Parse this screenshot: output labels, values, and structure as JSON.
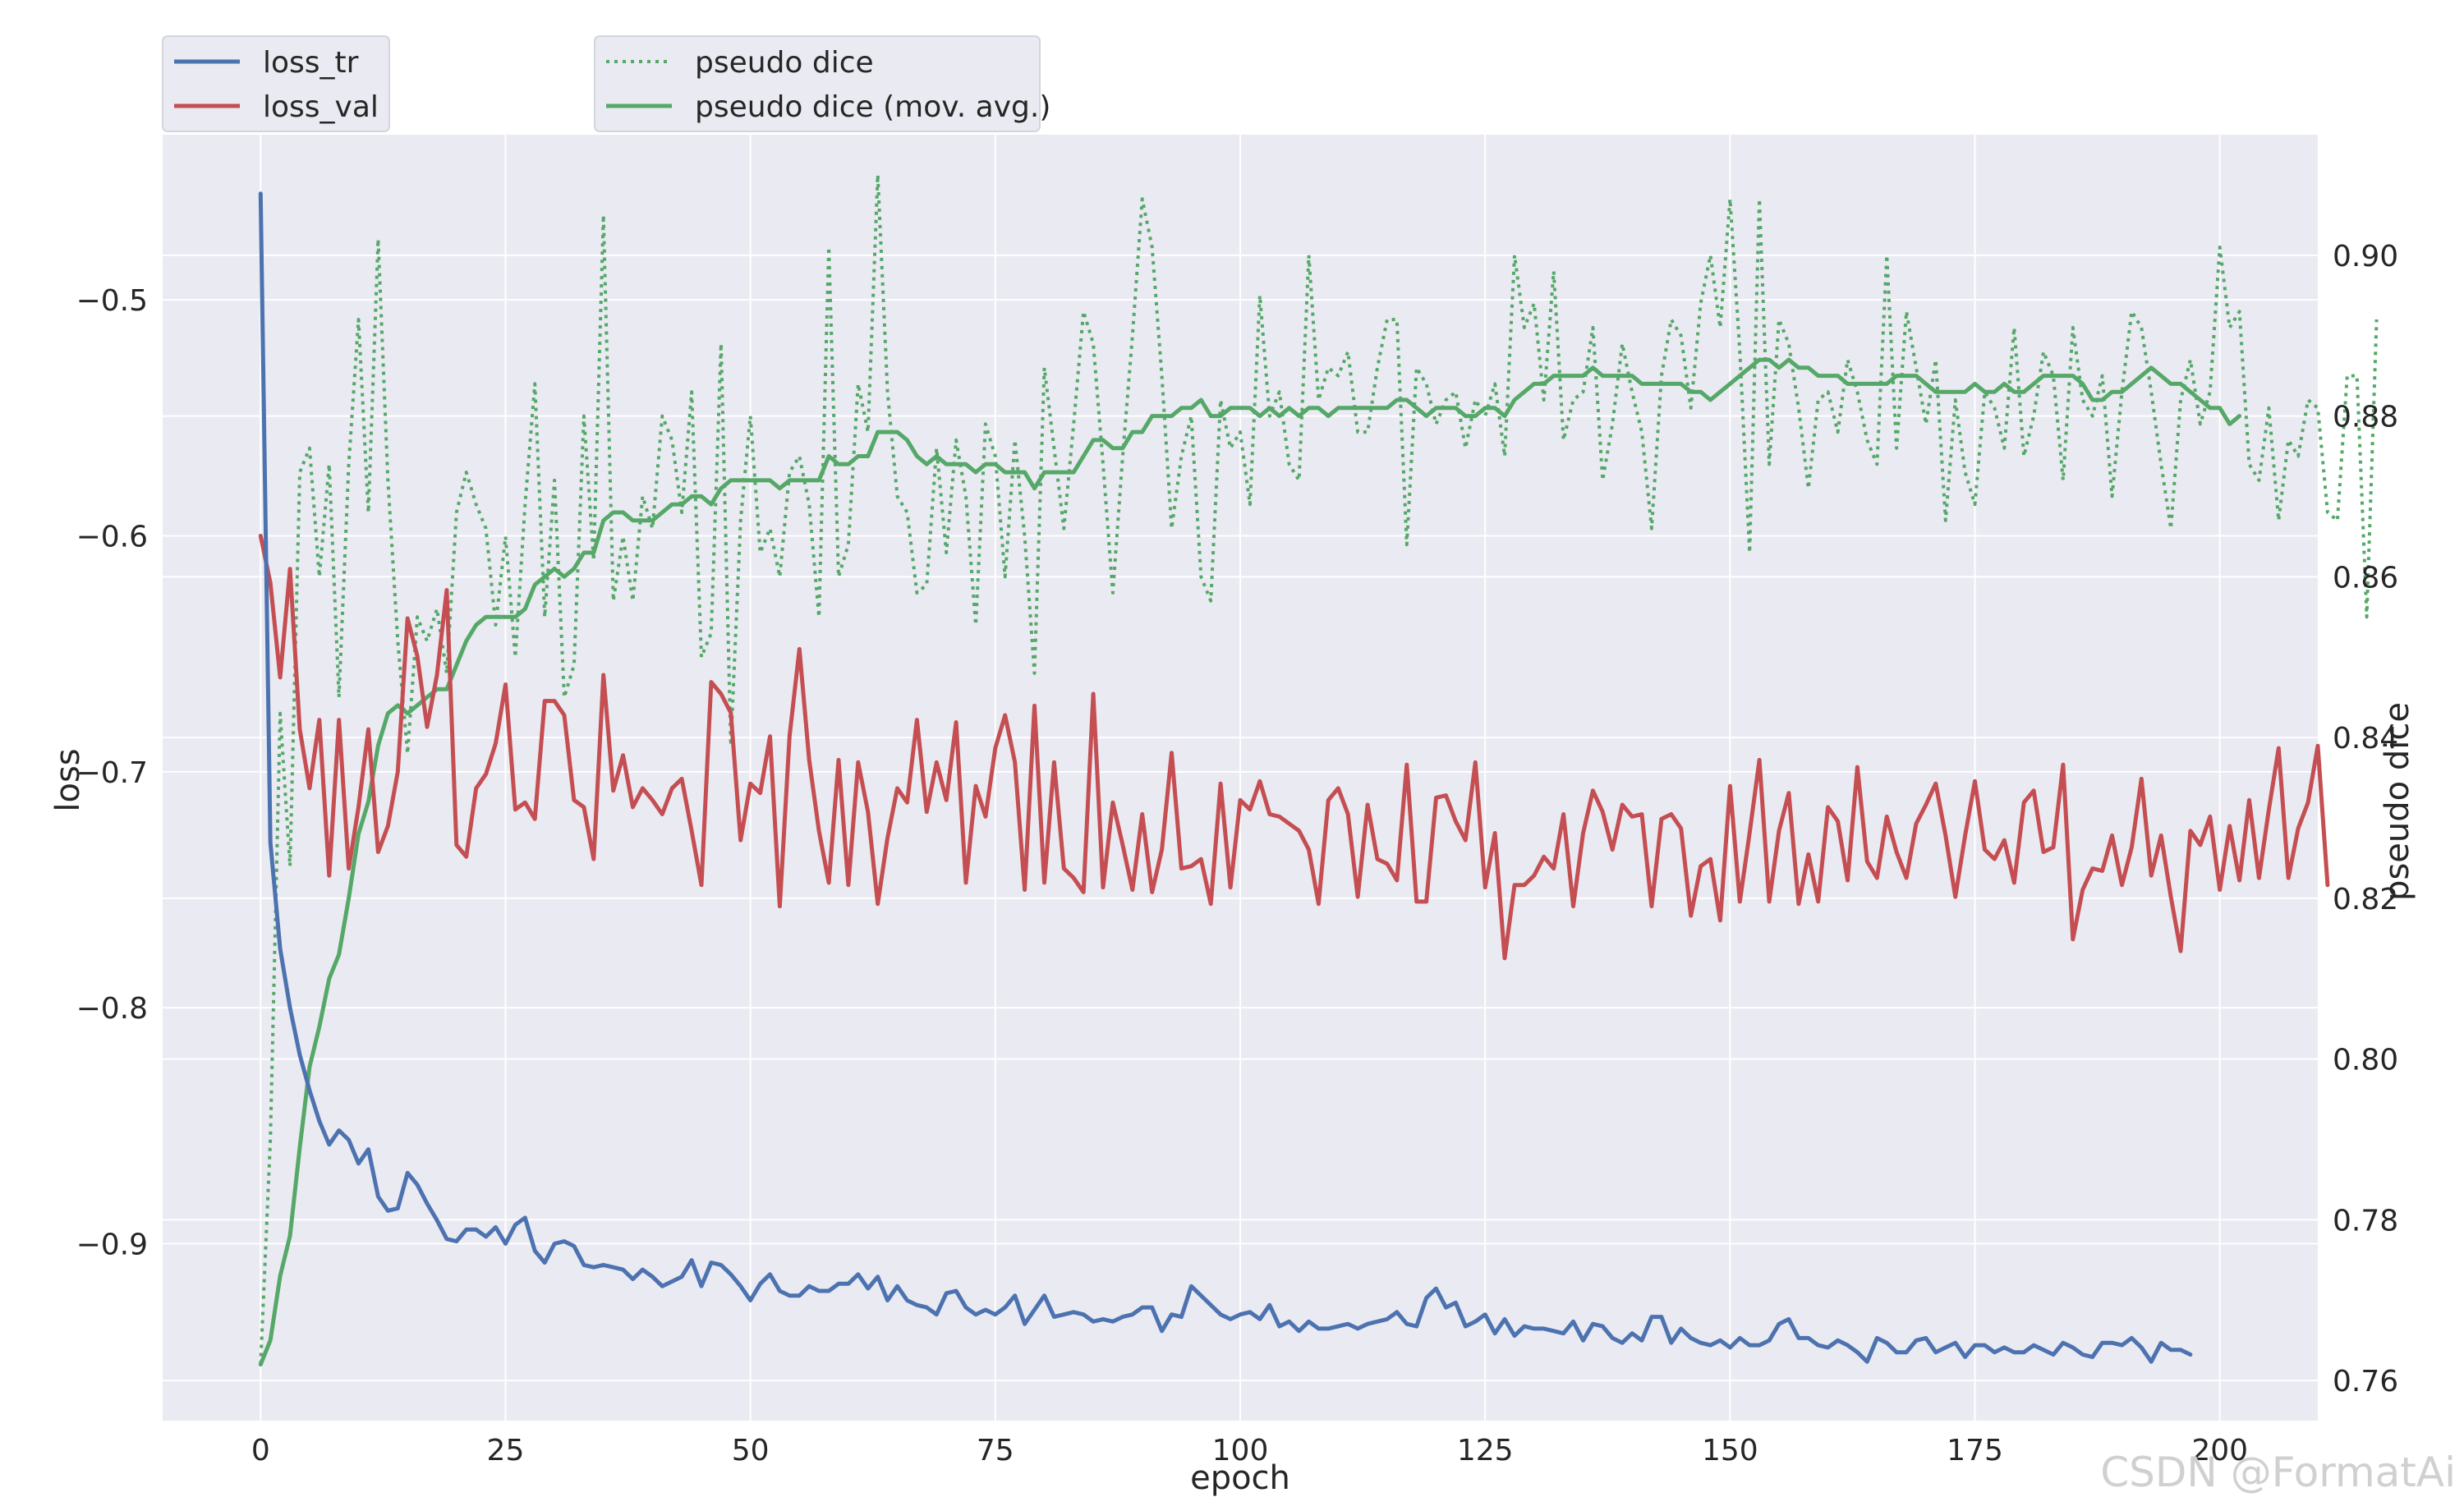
{
  "chart_data": {
    "type": "line",
    "xlabel": "epoch",
    "ylabel_left": "loss",
    "ylabel_right": "pseudo dice",
    "xlim": [
      -10,
      210
    ],
    "ylim_left": [
      -0.975,
      -0.43
    ],
    "ylim_right": [
      0.755,
      0.915
    ],
    "x_ticks": [
      0,
      25,
      50,
      75,
      100,
      125,
      150,
      175,
      200
    ],
    "y_ticks_left": [
      -0.9,
      -0.8,
      -0.7,
      -0.6,
      -0.5
    ],
    "y_ticks_right": [
      0.76,
      0.78,
      0.8,
      0.82,
      0.84,
      0.86,
      0.88,
      0.9
    ],
    "grid": true,
    "legend_left": {
      "placement": "top-left",
      "entries": [
        "loss_tr",
        "loss_val"
      ]
    },
    "legend_right": {
      "placement": "top-center-left",
      "entries": [
        "pseudo dice",
        "pseudo dice (mov. avg.)"
      ]
    },
    "colors": {
      "loss_tr": "#4c72b0",
      "loss_val": "#c44e52",
      "pseudo_dice": "#55a868",
      "pseudo_dice_mov_avg": "#55a868",
      "background": "#eaeaf2",
      "grid": "#ffffff"
    },
    "epochs": 200,
    "series": [
      {
        "name": "loss_tr",
        "axis": "left",
        "style": "solid",
        "values": [
          -0.455,
          -0.73,
          -0.775,
          -0.8,
          -0.82,
          -0.835,
          -0.848,
          -0.858,
          -0.852,
          -0.856,
          -0.866,
          -0.86,
          -0.88,
          -0.886,
          -0.885,
          -0.87,
          -0.875,
          -0.883,
          -0.89,
          -0.898,
          -0.899,
          -0.894,
          -0.894,
          -0.897,
          -0.893,
          -0.9,
          -0.892,
          -0.889,
          -0.903,
          -0.908,
          -0.9,
          -0.899,
          -0.901,
          -0.909,
          -0.91,
          -0.909,
          -0.91,
          -0.911,
          -0.915,
          -0.911,
          -0.914,
          -0.918,
          -0.916,
          -0.914,
          -0.907,
          -0.918,
          -0.908,
          -0.909,
          -0.913,
          -0.918,
          -0.924,
          -0.917,
          -0.913,
          -0.92,
          -0.922,
          -0.922,
          -0.918,
          -0.92,
          -0.92,
          -0.917,
          -0.917,
          -0.913,
          -0.919,
          -0.914,
          -0.924,
          -0.918,
          -0.924,
          -0.926,
          -0.927,
          -0.93,
          -0.921,
          -0.92,
          -0.927,
          -0.93,
          -0.928,
          -0.93,
          -0.927,
          -0.922,
          -0.934,
          -0.928,
          -0.922,
          -0.931,
          -0.93,
          -0.929,
          -0.93,
          -0.933,
          -0.932,
          -0.933,
          -0.931,
          -0.93,
          -0.927,
          -0.927,
          -0.937,
          -0.93,
          -0.931,
          -0.918,
          -0.922,
          -0.926,
          -0.93,
          -0.932,
          -0.93,
          -0.929,
          -0.932,
          -0.926,
          -0.935,
          -0.933,
          -0.937,
          -0.933,
          -0.936,
          -0.936,
          -0.935,
          -0.934,
          -0.936,
          -0.934,
          -0.933,
          -0.932,
          -0.929,
          -0.934,
          -0.935,
          -0.923,
          -0.919,
          -0.927,
          -0.925,
          -0.935,
          -0.933,
          -0.93,
          -0.938,
          -0.932,
          -0.939,
          -0.935,
          -0.936,
          -0.936,
          -0.937,
          -0.938,
          -0.933,
          -0.941,
          -0.934,
          -0.935,
          -0.94,
          -0.942,
          -0.938,
          -0.941,
          -0.931,
          -0.931,
          -0.942,
          -0.936,
          -0.94,
          -0.942,
          -0.943,
          -0.941,
          -0.944,
          -0.94,
          -0.943,
          -0.943,
          -0.941,
          -0.934,
          -0.932,
          -0.94,
          -0.94,
          -0.943,
          -0.944,
          -0.941,
          -0.943,
          -0.946,
          -0.95,
          -0.94,
          -0.942,
          -0.946,
          -0.946,
          -0.941,
          -0.94,
          -0.946,
          -0.944,
          -0.942,
          -0.948,
          -0.943,
          -0.943,
          -0.946,
          -0.944,
          -0.946,
          -0.946,
          -0.943,
          -0.945,
          -0.947,
          -0.942,
          -0.944,
          -0.947,
          -0.948,
          -0.942,
          -0.942,
          -0.943,
          -0.94,
          -0.944,
          -0.95,
          -0.942,
          -0.945,
          -0.945,
          -0.947
        ]
      },
      {
        "name": "loss_val",
        "axis": "left",
        "style": "solid",
        "values": [
          -0.6,
          -0.62,
          -0.66,
          -0.614,
          -0.682,
          -0.707,
          -0.678,
          -0.744,
          -0.678,
          -0.741,
          -0.715,
          -0.682,
          -0.734,
          -0.723,
          -0.7,
          -0.635,
          -0.651,
          -0.681,
          -0.659,
          -0.623,
          -0.731,
          -0.736,
          -0.707,
          -0.701,
          -0.688,
          -0.663,
          -0.716,
          -0.713,
          -0.72,
          -0.67,
          -0.67,
          -0.676,
          -0.712,
          -0.715,
          -0.737,
          -0.659,
          -0.708,
          -0.693,
          -0.715,
          -0.707,
          -0.712,
          -0.718,
          -0.707,
          -0.703,
          -0.725,
          -0.748,
          -0.662,
          -0.667,
          -0.675,
          -0.729,
          -0.705,
          -0.709,
          -0.685,
          -0.757,
          -0.685,
          -0.648,
          -0.695,
          -0.725,
          -0.747,
          -0.695,
          -0.748,
          -0.696,
          -0.717,
          -0.756,
          -0.728,
          -0.707,
          -0.713,
          -0.678,
          -0.717,
          -0.696,
          -0.712,
          -0.679,
          -0.747,
          -0.706,
          -0.719,
          -0.69,
          -0.676,
          -0.696,
          -0.75,
          -0.672,
          -0.747,
          -0.696,
          -0.741,
          -0.745,
          -0.751,
          -0.667,
          -0.749,
          -0.713,
          -0.731,
          -0.75,
          -0.718,
          -0.751,
          -0.733,
          -0.692,
          -0.741,
          -0.74,
          -0.737,
          -0.756,
          -0.705,
          -0.749,
          -0.712,
          -0.716,
          -0.704,
          -0.718,
          -0.719,
          -0.722,
          -0.725,
          -0.733,
          -0.756,
          -0.712,
          -0.707,
          -0.718,
          -0.753,
          -0.714,
          -0.737,
          -0.739,
          -0.746,
          -0.697,
          -0.755,
          -0.755,
          -0.711,
          -0.71,
          -0.721,
          -0.729,
          -0.696,
          -0.749,
          -0.726,
          -0.779,
          -0.748,
          -0.748,
          -0.744,
          -0.736,
          -0.741,
          -0.718,
          -0.757,
          -0.726,
          -0.708,
          -0.717,
          -0.733,
          -0.714,
          -0.719,
          -0.718,
          -0.757,
          -0.72,
          -0.718,
          -0.724,
          -0.761,
          -0.74,
          -0.737,
          -0.763,
          -0.706,
          -0.755,
          -0.726,
          -0.695,
          -0.755,
          -0.725,
          -0.709,
          -0.756,
          -0.735,
          -0.755,
          -0.715,
          -0.721,
          -0.746,
          -0.698,
          -0.738,
          -0.745,
          -0.719,
          -0.734,
          -0.745,
          -0.722,
          -0.714,
          -0.705,
          -0.727,
          -0.753,
          -0.727,
          -0.704,
          -0.733,
          -0.737,
          -0.729,
          -0.747,
          -0.713,
          -0.708,
          -0.734,
          -0.732,
          -0.697,
          -0.771,
          -0.75,
          -0.741,
          -0.742,
          -0.727,
          -0.748,
          -0.732,
          -0.703,
          -0.744,
          -0.727,
          -0.753,
          -0.776,
          -0.725,
          -0.731,
          -0.719,
          -0.75,
          -0.723,
          -0.746,
          -0.712,
          -0.745,
          -0.716,
          -0.69,
          -0.745,
          -0.724,
          -0.713,
          -0.689,
          -0.748
        ]
      },
      {
        "name": "pseudo dice",
        "axis": "right",
        "style": "dotted",
        "values": [
          0.762,
          0.79,
          0.843,
          0.824,
          0.873,
          0.876,
          0.86,
          0.874,
          0.845,
          0.874,
          0.892,
          0.868,
          0.902,
          0.872,
          0.852,
          0.838,
          0.855,
          0.852,
          0.856,
          0.848,
          0.868,
          0.873,
          0.869,
          0.866,
          0.854,
          0.865,
          0.85,
          0.869,
          0.884,
          0.855,
          0.872,
          0.845,
          0.849,
          0.88,
          0.862,
          0.905,
          0.857,
          0.865,
          0.857,
          0.87,
          0.866,
          0.88,
          0.877,
          0.868,
          0.883,
          0.85,
          0.853,
          0.889,
          0.839,
          0.867,
          0.88,
          0.863,
          0.866,
          0.86,
          0.873,
          0.875,
          0.869,
          0.855,
          0.901,
          0.86,
          0.864,
          0.884,
          0.878,
          0.91,
          0.883,
          0.87,
          0.868,
          0.858,
          0.859,
          0.876,
          0.863,
          0.877,
          0.87,
          0.854,
          0.879,
          0.875,
          0.86,
          0.877,
          0.865,
          0.848,
          0.886,
          0.876,
          0.866,
          0.879,
          0.893,
          0.889,
          0.874,
          0.858,
          0.875,
          0.89,
          0.907,
          0.901,
          0.885,
          0.866,
          0.875,
          0.88,
          0.86,
          0.857,
          0.882,
          0.876,
          0.878,
          0.869,
          0.895,
          0.88,
          0.883,
          0.874,
          0.872,
          0.9,
          0.882,
          0.886,
          0.885,
          0.888,
          0.878,
          0.878,
          0.886,
          0.892,
          0.892,
          0.864,
          0.886,
          0.884,
          0.879,
          0.882,
          0.883,
          0.876,
          0.882,
          0.88,
          0.884,
          0.875,
          0.9,
          0.891,
          0.894,
          0.882,
          0.898,
          0.877,
          0.882,
          0.883,
          0.891,
          0.872,
          0.879,
          0.889,
          0.883,
          0.878,
          0.866,
          0.885,
          0.892,
          0.89,
          0.881,
          0.894,
          0.9,
          0.891,
          0.907,
          0.888,
          0.863,
          0.907,
          0.874,
          0.892,
          0.889,
          0.881,
          0.871,
          0.882,
          0.883,
          0.878,
          0.887,
          0.883,
          0.877,
          0.874,
          0.9,
          0.876,
          0.893,
          0.886,
          0.879,
          0.887,
          0.867,
          0.882,
          0.873,
          0.869,
          0.883,
          0.881,
          0.876,
          0.891,
          0.875,
          0.88,
          0.888,
          0.885,
          0.872,
          0.891,
          0.882,
          0.88,
          0.885,
          0.87,
          0.883,
          0.893,
          0.891,
          0.883,
          0.874,
          0.866,
          0.882,
          0.887,
          0.879,
          0.883,
          0.901,
          0.891,
          0.893,
          0.874,
          0.872,
          0.881,
          0.867,
          0.877,
          0.875,
          0.882,
          0.881,
          0.868,
          0.867,
          0.885,
          0.885,
          0.855,
          0.892
        ]
      },
      {
        "name": "pseudo dice (mov. avg.)",
        "axis": "right",
        "style": "solid",
        "values": [
          0.762,
          0.765,
          0.773,
          0.778,
          0.789,
          0.799,
          0.804,
          0.81,
          0.813,
          0.82,
          0.828,
          0.832,
          0.839,
          0.843,
          0.844,
          0.843,
          0.844,
          0.845,
          0.846,
          0.846,
          0.849,
          0.852,
          0.854,
          0.855,
          0.855,
          0.855,
          0.855,
          0.856,
          0.859,
          0.86,
          0.861,
          0.86,
          0.861,
          0.863,
          0.863,
          0.867,
          0.868,
          0.868,
          0.867,
          0.867,
          0.867,
          0.868,
          0.869,
          0.869,
          0.87,
          0.87,
          0.869,
          0.871,
          0.872,
          0.872,
          0.872,
          0.872,
          0.872,
          0.871,
          0.872,
          0.872,
          0.872,
          0.872,
          0.875,
          0.874,
          0.874,
          0.875,
          0.875,
          0.878,
          0.878,
          0.878,
          0.877,
          0.875,
          0.874,
          0.875,
          0.874,
          0.874,
          0.874,
          0.873,
          0.874,
          0.874,
          0.873,
          0.873,
          0.873,
          0.871,
          0.873,
          0.873,
          0.873,
          0.873,
          0.875,
          0.877,
          0.877,
          0.876,
          0.876,
          0.878,
          0.878,
          0.88,
          0.88,
          0.88,
          0.881,
          0.881,
          0.882,
          0.88,
          0.88,
          0.881,
          0.881,
          0.881,
          0.88,
          0.881,
          0.88,
          0.881,
          0.88,
          0.881,
          0.881,
          0.88,
          0.881,
          0.881,
          0.881,
          0.881,
          0.881,
          0.881,
          0.882,
          0.882,
          0.881,
          0.88,
          0.881,
          0.881,
          0.881,
          0.88,
          0.88,
          0.881,
          0.881,
          0.88,
          0.882,
          0.883,
          0.884,
          0.884,
          0.885,
          0.885,
          0.885,
          0.885,
          0.886,
          0.885,
          0.885,
          0.885,
          0.885,
          0.884,
          0.884,
          0.884,
          0.884,
          0.884,
          0.883,
          0.883,
          0.882,
          0.883,
          0.884,
          0.885,
          0.886,
          0.887,
          0.887,
          0.886,
          0.887,
          0.886,
          0.886,
          0.885,
          0.885,
          0.885,
          0.884,
          0.884,
          0.884,
          0.884,
          0.884,
          0.885,
          0.885,
          0.885,
          0.884,
          0.883,
          0.883,
          0.883,
          0.883,
          0.884,
          0.883,
          0.883,
          0.884,
          0.883,
          0.883,
          0.884,
          0.885,
          0.885,
          0.885,
          0.885,
          0.884,
          0.882,
          0.882,
          0.883,
          0.883,
          0.884,
          0.885,
          0.886,
          0.885,
          0.884,
          0.884,
          0.883,
          0.882,
          0.881,
          0.881,
          0.879,
          0.88
        ]
      }
    ]
  },
  "watermark": "CSDN @FormatAi"
}
